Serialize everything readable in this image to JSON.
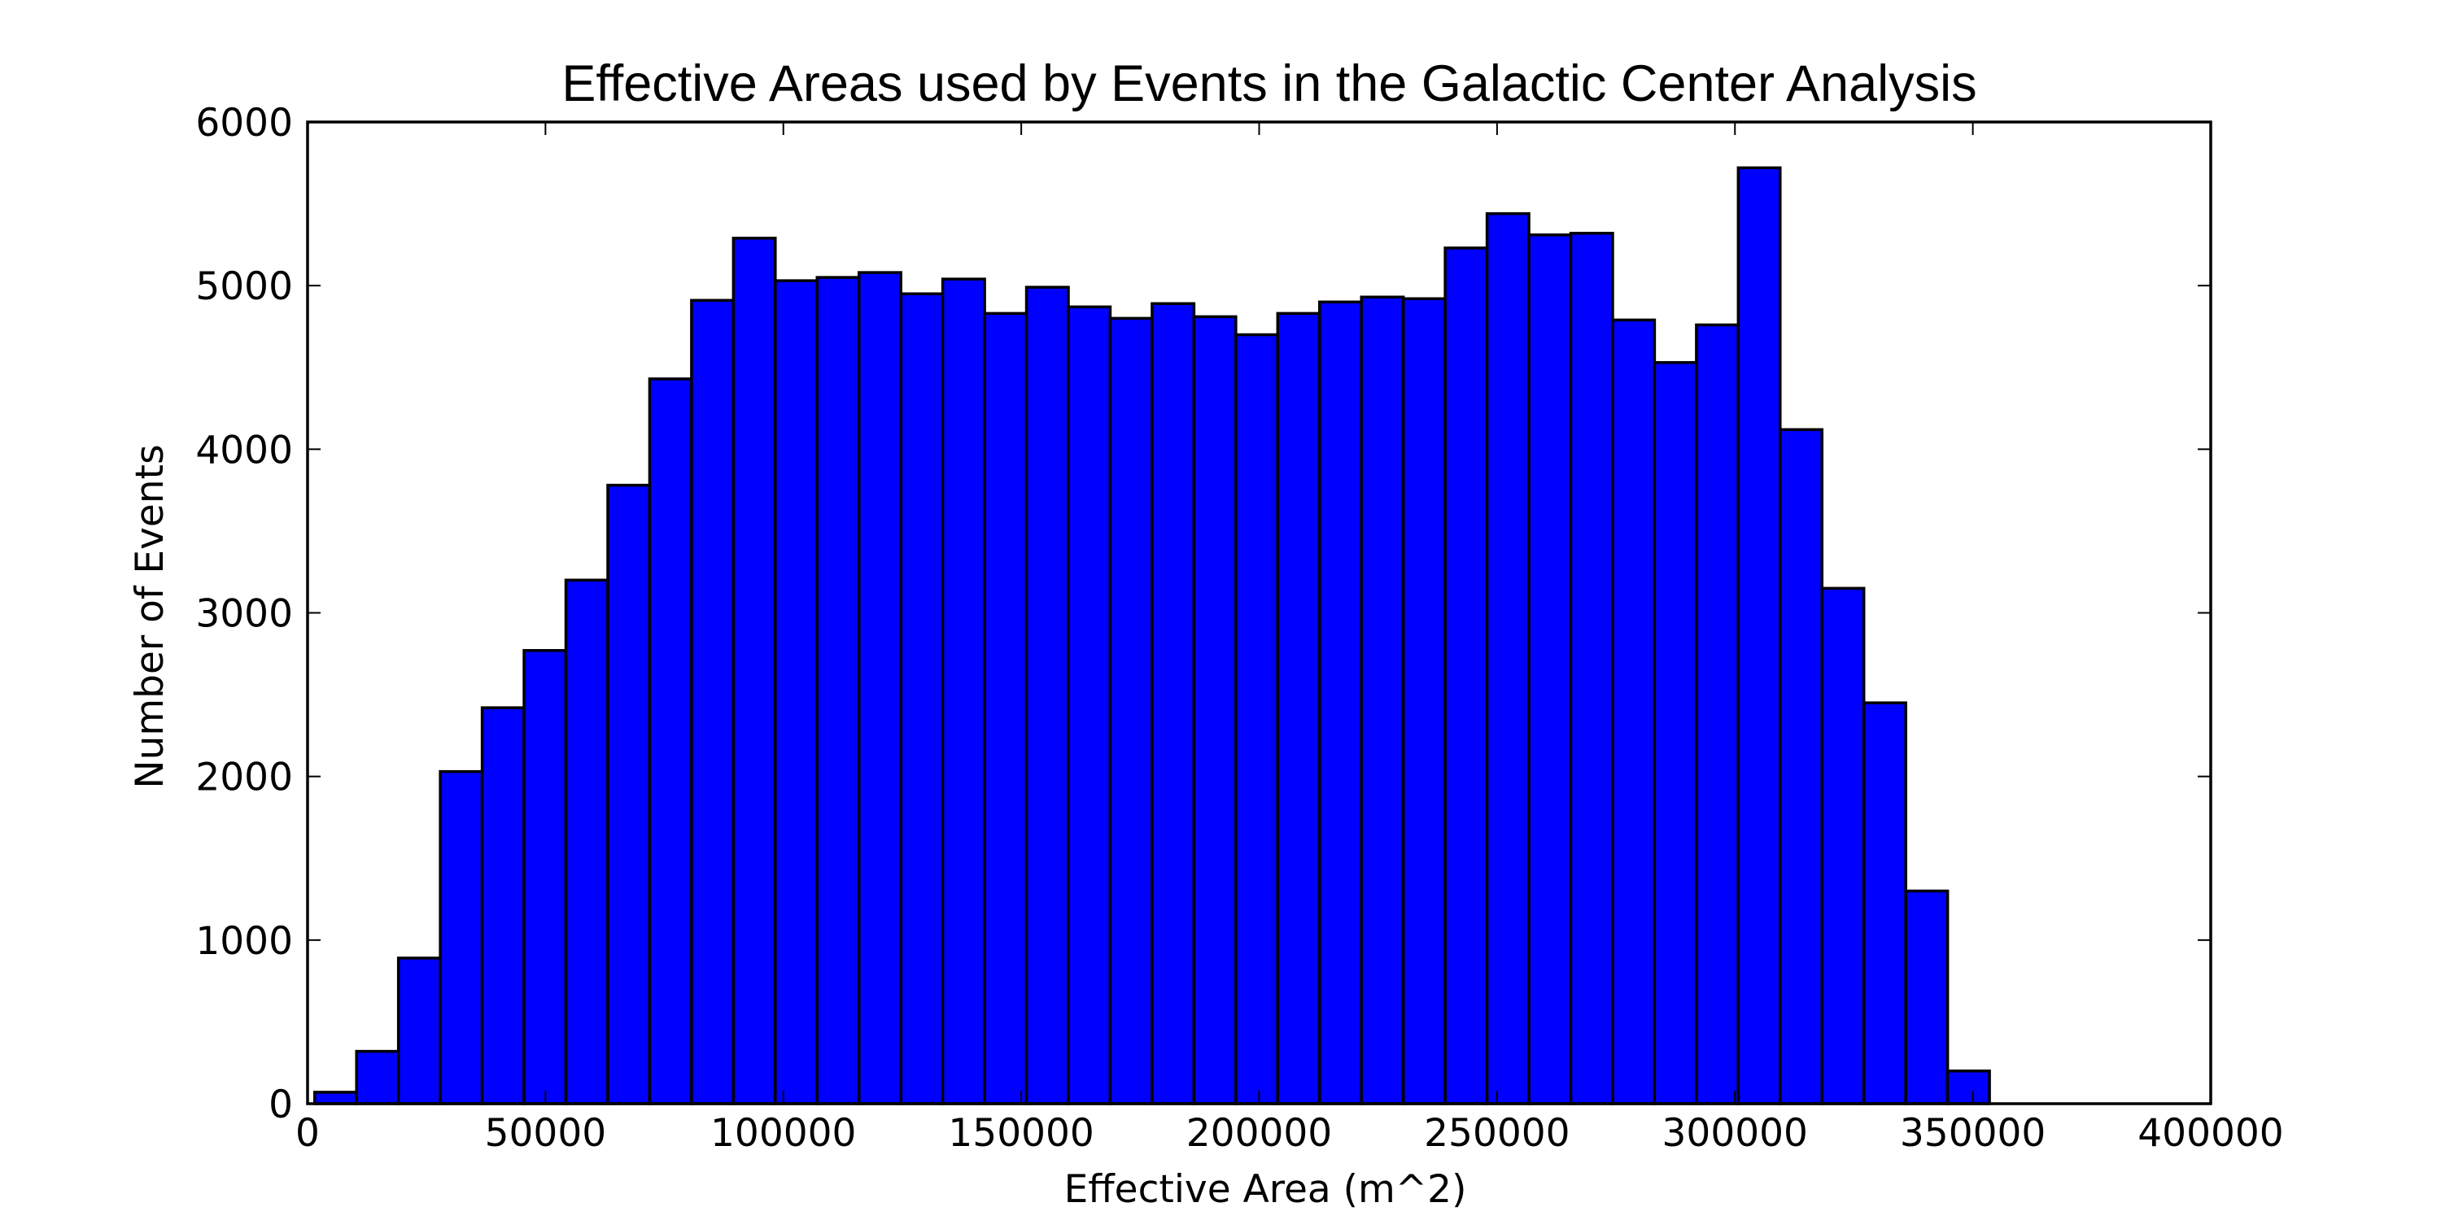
{
  "chart_data": {
    "type": "bar",
    "title": "Effective Areas used by Events in the Galactic Center Analysis",
    "xlabel": "Effective Area (m^2)",
    "ylabel": "Number of Events",
    "xlim": [
      0,
      400000
    ],
    "ylim": [
      0,
      6000
    ],
    "xticks": [
      0,
      50000,
      100000,
      150000,
      200000,
      250000,
      300000,
      350000,
      400000
    ],
    "yticks": [
      0,
      1000,
      2000,
      3000,
      4000,
      5000,
      6000
    ],
    "bar_color": "#0000ff",
    "edge_color": "#000000",
    "grid": false,
    "bins": [
      {
        "x0": 1500,
        "x1": 10300,
        "value": 70
      },
      {
        "x0": 10300,
        "x1": 19100,
        "value": 320
      },
      {
        "x0": 19100,
        "x1": 27900,
        "value": 890
      },
      {
        "x0": 27900,
        "x1": 36700,
        "value": 2030
      },
      {
        "x0": 36700,
        "x1": 45500,
        "value": 2420
      },
      {
        "x0": 45500,
        "x1": 54300,
        "value": 2770
      },
      {
        "x0": 54300,
        "x1": 63100,
        "value": 3200
      },
      {
        "x0": 63100,
        "x1": 71900,
        "value": 3780
      },
      {
        "x0": 71900,
        "x1": 80700,
        "value": 4430
      },
      {
        "x0": 80700,
        "x1": 89500,
        "value": 4910
      },
      {
        "x0": 89500,
        "x1": 98300,
        "value": 5290
      },
      {
        "x0": 98300,
        "x1": 107100,
        "value": 5030
      },
      {
        "x0": 107100,
        "x1": 115900,
        "value": 5050
      },
      {
        "x0": 115900,
        "x1": 124700,
        "value": 5080
      },
      {
        "x0": 124700,
        "x1": 133500,
        "value": 4950
      },
      {
        "x0": 133500,
        "x1": 142300,
        "value": 5040
      },
      {
        "x0": 142300,
        "x1": 151100,
        "value": 4830
      },
      {
        "x0": 151100,
        "x1": 159900,
        "value": 4990
      },
      {
        "x0": 159900,
        "x1": 168700,
        "value": 4870
      },
      {
        "x0": 168700,
        "x1": 177500,
        "value": 4800
      },
      {
        "x0": 177500,
        "x1": 186300,
        "value": 4890
      },
      {
        "x0": 186300,
        "x1": 195100,
        "value": 4810
      },
      {
        "x0": 195100,
        "x1": 203900,
        "value": 4700
      },
      {
        "x0": 203900,
        "x1": 212700,
        "value": 4830
      },
      {
        "x0": 212700,
        "x1": 221500,
        "value": 4900
      },
      {
        "x0": 221500,
        "x1": 230300,
        "value": 4930
      },
      {
        "x0": 230300,
        "x1": 239100,
        "value": 4920
      },
      {
        "x0": 239100,
        "x1": 247900,
        "value": 5230
      },
      {
        "x0": 247900,
        "x1": 256700,
        "value": 5440
      },
      {
        "x0": 256700,
        "x1": 265500,
        "value": 5310
      },
      {
        "x0": 265500,
        "x1": 274300,
        "value": 5320
      },
      {
        "x0": 274300,
        "x1": 283100,
        "value": 4790
      },
      {
        "x0": 283100,
        "x1": 291900,
        "value": 4530
      },
      {
        "x0": 291900,
        "x1": 300700,
        "value": 4760
      },
      {
        "x0": 300700,
        "x1": 309500,
        "value": 5720
      },
      {
        "x0": 309500,
        "x1": 318300,
        "value": 4120
      },
      {
        "x0": 318300,
        "x1": 327100,
        "value": 3150
      },
      {
        "x0": 327100,
        "x1": 335900,
        "value": 2450
      },
      {
        "x0": 335900,
        "x1": 344700,
        "value": 1300
      },
      {
        "x0": 344700,
        "x1": 353500,
        "value": 200
      }
    ]
  }
}
